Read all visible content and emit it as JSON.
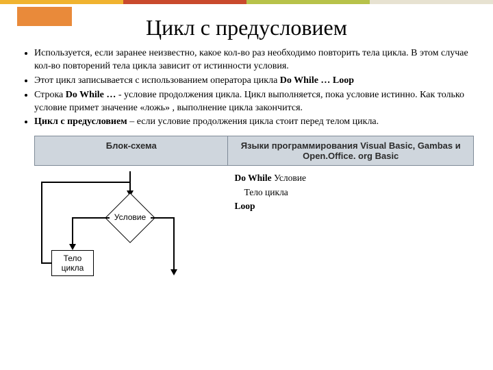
{
  "topbar": {
    "segments": [
      {
        "color": "#f0b32f",
        "width": "25%"
      },
      {
        "color": "#c94a2d",
        "width": "25%"
      },
      {
        "color": "#b7c24a",
        "width": "25%"
      },
      {
        "color": "#e7e2d1",
        "width": "25%"
      }
    ],
    "accent_color": "#e98a3a"
  },
  "title": "Цикл с предусловием",
  "bullets": [
    {
      "html": "Используется, если заранее неизвестно, какое кол-во раз необходимо повторить тела цикла. В этом случае кол-во повторений тела цикла зависит от истинности условия."
    },
    {
      "html": "Этот цикл записывается с использованием оператора цикла <b>Do While … Loop</b>"
    },
    {
      "html": "Строка <b>Do While …</b> - условие продолжения цикла. Цикл выполняется, пока условие истинно. Как только условие примет значение «ложь» , выполнение цикла закончится."
    },
    {
      "html": "<b>Цикл с предусловием</b> – если условие продолжения цикла стоит перед телом цикла."
    }
  ],
  "table": {
    "header_left": "Блок-схема",
    "header_right": "Языки программирования Visual Basic, Gambas и Open.Office. org Basic",
    "code": {
      "line1_prefix": "Do While ",
      "line1_rest": "Условие",
      "line2": "Тело цикла",
      "line3": "Loop"
    }
  },
  "flowchart": {
    "condition_label": "Условие",
    "body_label": "Тело\nцикла",
    "line_color": "#000000"
  }
}
